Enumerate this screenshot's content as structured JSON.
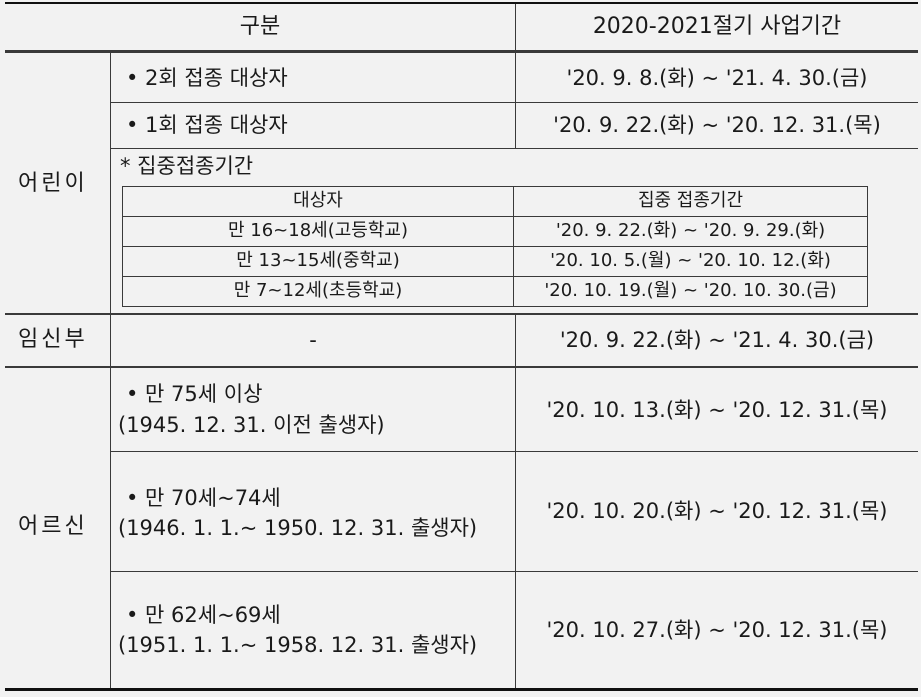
{
  "header": {
    "col1": "구분",
    "col2": "2020-2021절기 사업기간"
  },
  "children": {
    "label": "어린이",
    "rows": [
      {
        "target": "• 2회 접종 대상자",
        "period": "'20.  9.  8.(화) ~ '21.  4. 30.(금)"
      },
      {
        "target": "• 1회 접종 대상자",
        "period": "'20. 9. 22.(화) ~ '20. 12. 31.(목)"
      }
    ],
    "intensive_title": "* 집중접종기간",
    "intensive_headers": {
      "target": "대상자",
      "period": "집중 접종기간"
    },
    "intensive_rows": [
      {
        "target": "만 16~18세(고등학교)",
        "period": "'20. 9. 22.(화) ~ '20. 9. 29.(화)"
      },
      {
        "target": "만 13~15세(중학교)",
        "period": "'20. 10. 5.(월) ~ '20. 10. 12.(화)"
      },
      {
        "target": "만 7~12세(초등학교)",
        "period": "'20. 10. 19.(월) ~ '20. 10. 30.(금)"
      }
    ]
  },
  "pregnant": {
    "label": "임신부",
    "target": "-",
    "period": "'20. 9. 22.(화) ~ '21.  4. 30.(금)"
  },
  "elderly": {
    "label": "어르신",
    "rows": [
      {
        "line1": "• 만 75세 이상",
        "line2": "(1945. 12. 31. 이전 출생자)",
        "period": "'20. 10. 13.(화) ~ '20. 12. 31.(목)"
      },
      {
        "line1": "• 만 70세~74세",
        "line2": "(1946. 1. 1.~ 1950. 12. 31. 출생자)",
        "period": "'20. 10. 20.(화) ~ '20. 12. 31.(목)"
      },
      {
        "line1": "• 만 62세~69세",
        "line2": "(1951. 1. 1.~ 1958. 12. 31. 출생자)",
        "period": "'20. 10. 27.(화) ~ '20. 12. 31.(목)"
      }
    ]
  }
}
